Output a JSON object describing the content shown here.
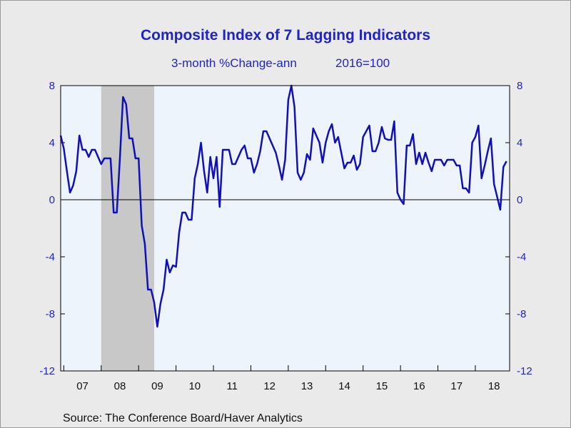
{
  "title": "Composite Index of 7 Lagging Indicators",
  "subtitle_left": "3-month %Change-ann",
  "subtitle_right": "2016=100",
  "source": "Source:  The Conference Board/Haver Analytics",
  "colors": {
    "line": "#1010b8",
    "text": "#1f24c8",
    "plot_bg": "#eef4fc",
    "recession": "#c8c8c8"
  },
  "chart_data": {
    "type": "line",
    "title": "Composite Index of 7 Lagging Indicators",
    "subtitle": "3-month %Change-ann    2016=100",
    "ylim": [
      -12,
      8
    ],
    "yticks": [
      -12,
      -8,
      -4,
      0,
      4,
      8
    ],
    "x_start": "2006-12",
    "x_end": "2018-12",
    "x_tick_labels": [
      "07",
      "08",
      "09",
      "10",
      "11",
      "12",
      "13",
      "14",
      "15",
      "16",
      "17",
      "18"
    ],
    "recession_shading": {
      "start": "2008-01",
      "end": "2009-06"
    },
    "zero_line": true,
    "series": [
      {
        "frequency": "monthly",
        "start": "2006-12",
        "values": [
          4.5,
          3.6,
          2.0,
          0.5,
          1.0,
          2.0,
          4.5,
          3.5,
          3.5,
          3.0,
          3.5,
          3.5,
          3.0,
          2.5,
          2.9,
          2.9,
          2.9,
          -0.9,
          -0.9,
          2.9,
          7.2,
          6.7,
          4.3,
          4.3,
          2.9,
          2.9,
          -1.8,
          -3.1,
          -6.3,
          -6.3,
          -7.2,
          -8.9,
          -7.3,
          -6.3,
          -4.2,
          -5.1,
          -4.6,
          -4.7,
          -2.3,
          -0.9,
          -0.9,
          -1.4,
          -1.4,
          1.5,
          2.5,
          4.0,
          2.0,
          0.5,
          3.0,
          1.5,
          3.0,
          -0.5,
          3.5,
          3.5,
          3.5,
          2.5,
          2.5,
          3.0,
          3.5,
          3.8,
          2.9,
          2.9,
          1.9,
          2.5,
          3.4,
          4.8,
          4.8,
          4.3,
          3.8,
          3.3,
          2.4,
          1.4,
          2.8,
          7.0,
          8.0,
          6.5,
          1.9,
          1.4,
          1.9,
          3.2,
          2.8,
          5.0,
          4.5,
          4.0,
          2.6,
          4.0,
          4.8,
          5.3,
          4.0,
          4.4,
          3.3,
          2.2,
          2.6,
          2.6,
          3.1,
          2.1,
          2.5,
          4.4,
          4.8,
          5.2,
          3.4,
          3.4,
          4.0,
          5.1,
          4.3,
          4.2,
          4.2,
          5.5,
          0.5,
          0.0,
          -0.3,
          3.8,
          3.8,
          4.6,
          2.5,
          3.3,
          2.5,
          3.3,
          2.6,
          2.0,
          2.8,
          2.8,
          2.8,
          2.4,
          2.8,
          2.8,
          2.8,
          2.4,
          2.4,
          0.8,
          0.8,
          0.5,
          4.0,
          4.4,
          5.2,
          1.5,
          2.4,
          3.4,
          4.3,
          1.1,
          0.2,
          -0.7,
          2.3,
          2.7
        ]
      }
    ]
  }
}
